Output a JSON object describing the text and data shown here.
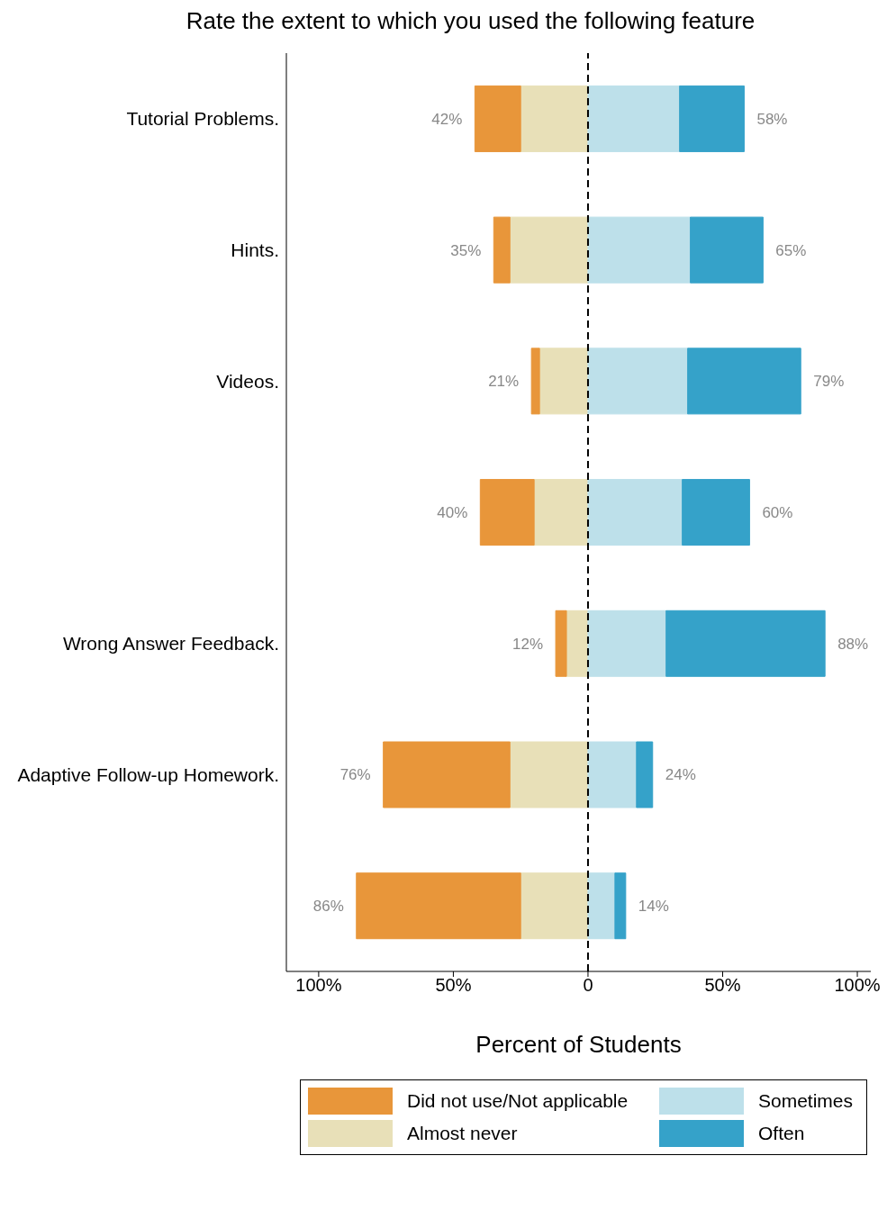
{
  "chart_data": {
    "type": "bar",
    "orientation": "horizontal",
    "stacked": true,
    "title": "Rate the extent to which you used the following feature",
    "xlabel": "Percent of Students",
    "categories": [
      "Tutorial Problems.",
      "Hints.",
      "Videos.",
      null,
      "Wrong Answer Feedback.",
      "Adaptive Follow-up Homework.",
      null
    ],
    "series": [
      {
        "name": "Almost never",
        "color": "#e8e0b8",
        "values": [
          -25,
          -29,
          -18,
          -20,
          -8,
          -29,
          -25
        ]
      },
      {
        "name": "Did not use/Not applicable",
        "color": "#e8963a",
        "values": [
          -17,
          -6,
          -3,
          -20,
          -4,
          -47,
          -61
        ]
      },
      {
        "name": "Sometimes",
        "color": "#bde0ea",
        "values": [
          34,
          38,
          37,
          35,
          29,
          18,
          10
        ]
      },
      {
        "name": "Often",
        "color": "#35a2c9",
        "values": [
          24,
          27,
          42,
          25,
          59,
          6,
          4
        ]
      }
    ],
    "totals": [
      [
        "42%",
        "58%"
      ],
      [
        "35%",
        "65%"
      ],
      [
        "21%",
        "79%"
      ],
      [
        "40%",
        "60%"
      ],
      [
        "12%",
        "88%"
      ],
      [
        "76%",
        "24%"
      ],
      [
        "86%",
        "14%"
      ]
    ],
    "xlim": [
      -112,
      105
    ],
    "xticks": [
      {
        "value": -100,
        "label": "100%"
      },
      {
        "value": -50,
        "label": "50%"
      },
      0,
      {
        "value": 50,
        "label": "50%"
      },
      {
        "value": 100,
        "label": "100%"
      }
    ],
    "ref_lines": [
      {
        "axis": "x",
        "value": 0,
        "color": "#000000",
        "line_style": "dashed"
      }
    ],
    "grid": false,
    "legend": "bottom"
  }
}
